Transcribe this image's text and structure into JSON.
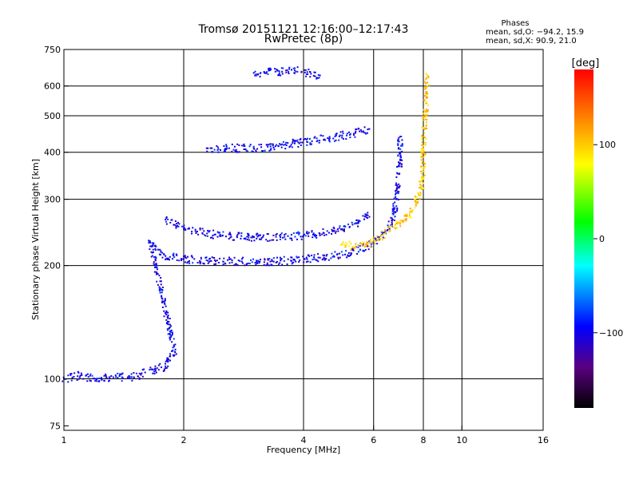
{
  "chart_data": {
    "type": "scatter",
    "title": "Tromsø 20151121 12:16:00–12:17:43",
    "subtitle": "RwPretec (8p)",
    "xlabel": "Frequency [MHz]",
    "ylabel": "Stationary phase Virtual Height [km]",
    "x_scale": "log2",
    "y_scale": "log",
    "xlim": [
      1,
      16
    ],
    "ylim": [
      73,
      750
    ],
    "x_ticks": [
      1,
      2,
      4,
      6,
      8,
      10,
      16
    ],
    "x_tick_labels": [
      "1",
      "2",
      "4",
      "6",
      "8",
      "10",
      "16"
    ],
    "y_ticks": [
      75,
      100,
      200,
      300,
      400,
      500,
      600,
      750
    ],
    "y_tick_labels": [
      "75",
      "100",
      "200",
      "300",
      "400",
      "500",
      "600",
      "750"
    ],
    "grid": true,
    "stats": {
      "title": "Phases",
      "o_line": "mean, sd,O: −94.2, 15.9",
      "x_line": "mean, sd,X:  90.9, 21.0"
    },
    "colorbar": {
      "label": "[deg]",
      "min": -180,
      "max": 180,
      "ticks": [
        100,
        0,
        -100
      ],
      "tick_labels": [
        "100",
        "0",
        "−100"
      ]
    },
    "series": [
      {
        "mode": "O",
        "phase_mean": -94.2,
        "phase_sd": 15.9
      },
      {
        "mode": "X",
        "phase_mean": 90.9,
        "phase_sd": 21.0
      }
    ],
    "trace_points": [
      [
        1.0,
        100,
        -100
      ],
      [
        1.1,
        102,
        -100
      ],
      [
        1.2,
        100,
        -100
      ],
      [
        1.3,
        101,
        -100
      ],
      [
        1.4,
        101,
        -100
      ],
      [
        1.5,
        101,
        -100
      ],
      [
        1.6,
        104,
        -100
      ],
      [
        1.7,
        106,
        -100
      ],
      [
        1.8,
        108,
        -100
      ],
      [
        1.85,
        115,
        -100
      ],
      [
        1.9,
        118,
        -100
      ],
      [
        1.65,
        230,
        -100
      ],
      [
        1.7,
        220,
        -100
      ],
      [
        1.8,
        212,
        -100
      ],
      [
        2.0,
        208,
        -100
      ],
      [
        2.3,
        206,
        -100
      ],
      [
        2.8,
        205,
        -100
      ],
      [
        3.3,
        205,
        -100
      ],
      [
        3.8,
        207,
        -100
      ],
      [
        4.5,
        210,
        -100
      ],
      [
        5.2,
        216,
        -100
      ],
      [
        5.8,
        225,
        -100
      ],
      [
        6.2,
        235,
        -100
      ],
      [
        6.5,
        248,
        -100
      ],
      [
        6.7,
        265,
        -100
      ],
      [
        6.85,
        300,
        -100
      ],
      [
        6.95,
        350,
        -100
      ],
      [
        7.0,
        400,
        -100
      ],
      [
        7.0,
        440,
        -100
      ],
      [
        1.8,
        265,
        -100
      ],
      [
        2.0,
        250,
        -100
      ],
      [
        2.5,
        240,
        -100
      ],
      [
        3.0,
        238,
        -100
      ],
      [
        3.5,
        238,
        -100
      ],
      [
        4.0,
        240,
        -100
      ],
      [
        4.5,
        244,
        -100
      ],
      [
        5.0,
        250,
        -100
      ],
      [
        5.5,
        260,
        -100
      ],
      [
        5.8,
        272,
        -100
      ],
      [
        2.3,
        410,
        -100
      ],
      [
        2.6,
        410,
        -100
      ],
      [
        3.0,
        410,
        -100
      ],
      [
        3.4,
        415,
        -100
      ],
      [
        3.8,
        422,
        -100
      ],
      [
        4.2,
        428,
        -100
      ],
      [
        4.6,
        436,
        -100
      ],
      [
        5.0,
        443,
        -100
      ],
      [
        5.4,
        450,
        -100
      ],
      [
        5.8,
        460,
        -100
      ],
      [
        3.0,
        650,
        -100
      ],
      [
        3.4,
        655,
        -100
      ],
      [
        3.8,
        660,
        -100
      ],
      [
        4.4,
        640,
        -100
      ],
      [
        5.0,
        228,
        100
      ],
      [
        5.4,
        225,
        100
      ],
      [
        5.8,
        228,
        100
      ],
      [
        6.2,
        236,
        100
      ],
      [
        6.6,
        248,
        100
      ],
      [
        7.0,
        260,
        100
      ],
      [
        7.4,
        275,
        100
      ],
      [
        7.7,
        295,
        100
      ],
      [
        7.9,
        320,
        100
      ],
      [
        8.0,
        360,
        100
      ],
      [
        8.0,
        410,
        100
      ],
      [
        8.2,
        640,
        100
      ]
    ]
  }
}
